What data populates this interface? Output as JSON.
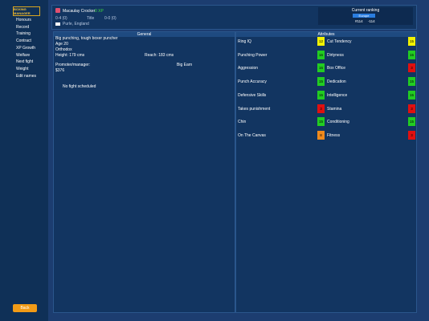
{
  "logo": "BOXING MANAGER",
  "menu": [
    "Honours",
    "Record",
    "Training",
    "Contract",
    "XP Growth",
    "Welfare",
    "Next fight",
    "Weight",
    "Edit names"
  ],
  "back_button": "Back",
  "header": {
    "name": "Macaulay Crocker",
    "xp": "0 XP",
    "record": "0-4 (0)",
    "title_label": "Title",
    "title_record": "0-0 (0)",
    "location": "Purle, England",
    "ranking_title": "Current ranking",
    "ranking_region": "Europe",
    "ranking_position": "#114",
    "ranking_change": "-114"
  },
  "general": {
    "title": "General",
    "lines": [
      "Big punching, tough boxer puncher",
      "Age 20",
      "Orthodox",
      "Height: 179 cms"
    ],
    "reach": "Reach: 183 cms",
    "promoter_label": "Promoter/manager:",
    "promoter": "Big Earn",
    "money": "$376",
    "next_fight": "No fight scheduled"
  },
  "attributes": {
    "title": "Attributes",
    "left": [
      {
        "name": "Ring IQ",
        "value": 12,
        "color": "#f2f200"
      },
      {
        "name": "Punching Power",
        "value": 16,
        "color": "#22cc22"
      },
      {
        "name": "Aggression",
        "value": 16,
        "color": "#22cc22"
      },
      {
        "name": "Punch Accuracy",
        "value": 15,
        "color": "#22cc22"
      },
      {
        "name": "Defensive Skills",
        "value": 15,
        "color": "#22cc22"
      },
      {
        "name": "Takes punishment",
        "value": 3,
        "color": "#e01010"
      },
      {
        "name": "Chin",
        "value": 15,
        "color": "#22cc22"
      },
      {
        "name": "On The Canvas",
        "value": 8,
        "color": "#f08a1c"
      }
    ],
    "right": [
      {
        "name": "Cut Tendency",
        "value": 15,
        "color": "#f2f200"
      },
      {
        "name": "Dirtyness",
        "value": 15,
        "color": "#22cc22"
      },
      {
        "name": "Box Office",
        "value": 3,
        "color": "#e01010"
      },
      {
        "name": "Dedication",
        "value": 15,
        "color": "#22cc22"
      },
      {
        "name": "Intelligence",
        "value": 15,
        "color": "#22cc22"
      },
      {
        "name": "Stamina",
        "value": 3,
        "color": "#e01010"
      },
      {
        "name": "Conditioning",
        "value": 15,
        "color": "#22cc22"
      },
      {
        "name": "Fitness",
        "value": 3,
        "color": "#e01010"
      }
    ]
  }
}
